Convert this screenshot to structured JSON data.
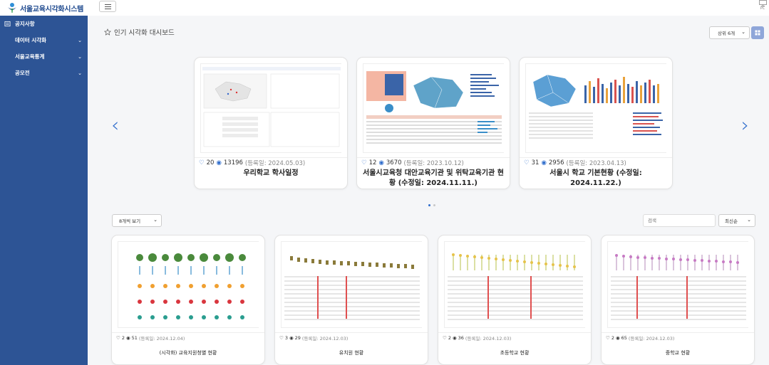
{
  "app": {
    "logo_text": "서울교육시각화시스템",
    "pc_label": "PC"
  },
  "sidebar": {
    "items": [
      {
        "label": "공지사항",
        "icon": "notice-icon",
        "has_submenu": false
      },
      {
        "label": "데이터 시각화",
        "icon": "",
        "has_submenu": true
      },
      {
        "label": "서울교육통계",
        "icon": "",
        "has_submenu": true
      },
      {
        "label": "공모전",
        "icon": "",
        "has_submenu": true
      }
    ]
  },
  "popular": {
    "title": "인기 시각화 대시보드",
    "top_select": "상위 6개",
    "cards": [
      {
        "likes": "20",
        "views": "13196",
        "date": "(등록일: 2024.05.03)",
        "title": "우리학교 학사일정"
      },
      {
        "likes": "12",
        "views": "3670",
        "date": "(등록일: 2023.10.12)",
        "title": "서울시교육청 대안교육기관 및 위탁교육기관 현황 (수정일: 2024.11.11.)"
      },
      {
        "likes": "31",
        "views": "2956",
        "date": "(등록일: 2023.04.13)",
        "title": "서울시 학교 기본현황 (수정일: 2024.11.22.)"
      }
    ]
  },
  "list": {
    "view_select": "8개씩 보기",
    "search_placeholder": "검색",
    "sort_select": "최신순",
    "cards": [
      {
        "likes": "2",
        "views": "51",
        "date": "(등록일: 2024.12.04)",
        "title": "(시각화) 교육지원청별 현황"
      },
      {
        "likes": "3",
        "views": "29",
        "date": "(등록일: 2024.12.03)",
        "title": "유치원 현황"
      },
      {
        "likes": "2",
        "views": "36",
        "date": "(등록일: 2024.12.03)",
        "title": "초등학교 현황"
      },
      {
        "likes": "2",
        "views": "65",
        "date": "(등록일: 2024.12.03)",
        "title": "중학교 현황"
      }
    ]
  },
  "colors": {
    "sidebar": "#2d5495",
    "accent": "#2f6dcc"
  }
}
